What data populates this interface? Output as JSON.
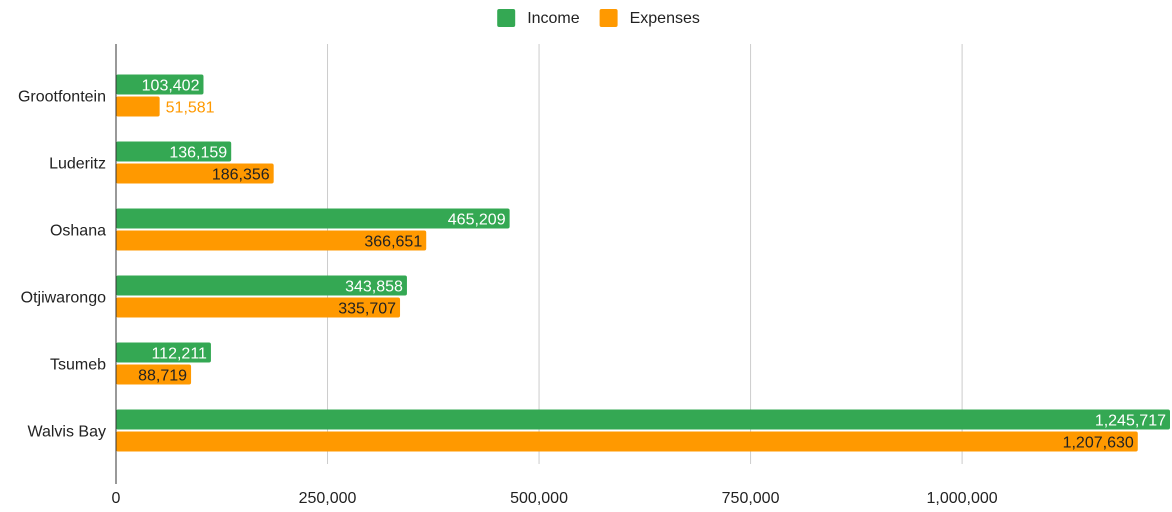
{
  "chart_data": {
    "type": "bar",
    "orientation": "horizontal",
    "title": "",
    "xlabel": "",
    "ylabel": "",
    "categories": [
      "Grootfontein",
      "Luderitz",
      "Oshana",
      "Otjiwarongo",
      "Tsumeb",
      "Walvis Bay"
    ],
    "series": [
      {
        "name": "Income",
        "color": "#34a853",
        "values": [
          103402,
          136159,
          465209,
          343858,
          112211,
          1245717
        ],
        "labels": [
          "103,402",
          "136,159",
          "465,209",
          "343,858",
          "112,211",
          "1,245,717"
        ]
      },
      {
        "name": "Expenses",
        "color": "#ff9900",
        "values": [
          51581,
          186356,
          366651,
          335707,
          88719,
          1207630
        ],
        "labels": [
          "51,581",
          "186,356",
          "366,651",
          "335,707",
          "88,719",
          "1,207,630"
        ]
      }
    ],
    "xlim": [
      0,
      1245717
    ],
    "ticks": [
      0,
      250000,
      500000,
      750000,
      1000000
    ],
    "tick_labels": [
      "0",
      "250,000",
      "500,000",
      "750,000",
      "1,000,000"
    ],
    "grid": true,
    "legend_position": "top"
  }
}
